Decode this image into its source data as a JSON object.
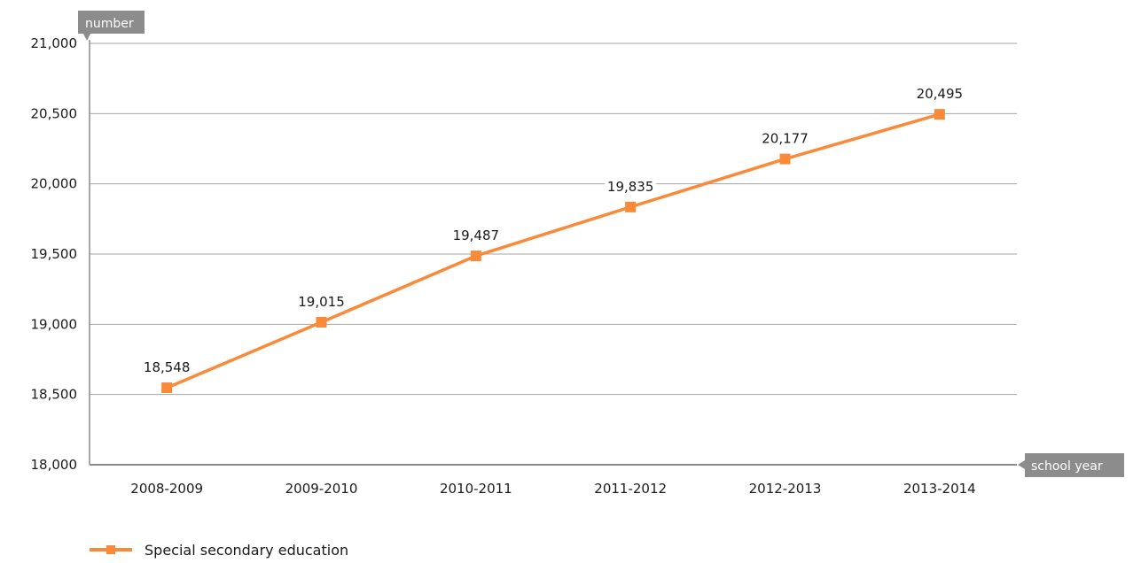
{
  "chart_data": {
    "type": "line",
    "categories": [
      "2008-2009",
      "2009-2010",
      "2010-2011",
      "2011-2012",
      "2012-2013",
      "2013-2014"
    ],
    "series": [
      {
        "name": "Special secondary education",
        "values": [
          18548,
          19015,
          19487,
          19835,
          20177,
          20495
        ],
        "color": "#f98a3a"
      }
    ],
    "data_labels": [
      "18,548",
      "19,015",
      "19,487",
      "19,835",
      "20,177",
      "20,495"
    ],
    "ylabel": "number",
    "xlabel": "school year",
    "ylim": [
      18000,
      21000
    ],
    "yticks": [
      18000,
      18500,
      19000,
      19500,
      20000,
      20500,
      21000
    ],
    "ytick_labels": [
      "18,000",
      "18,500",
      "19,000",
      "19,500",
      "20,000",
      "20,500",
      "21,000"
    ],
    "grid": true,
    "legend_position": "bottom-left",
    "axis_tag_color": "#8c8c8c",
    "grid_color": "#a6a6a6"
  }
}
